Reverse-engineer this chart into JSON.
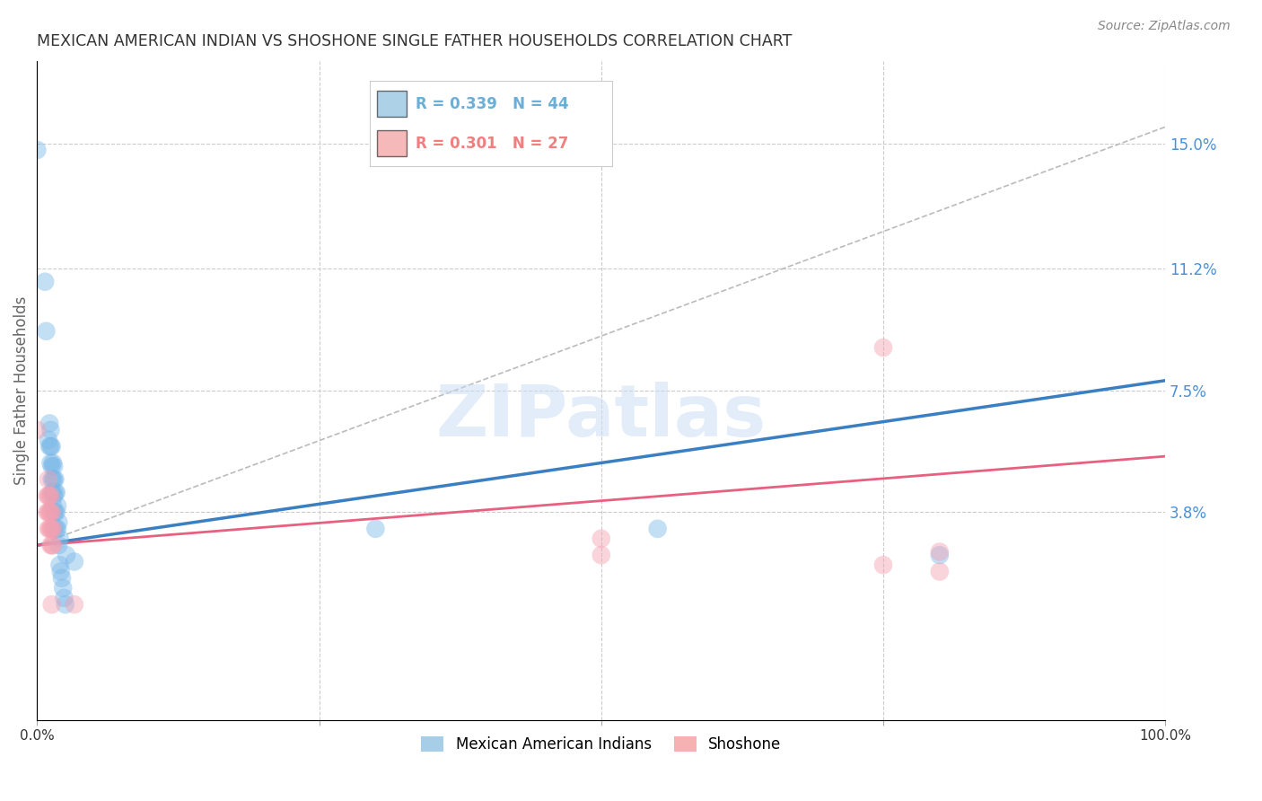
{
  "title": "MEXICAN AMERICAN INDIAN VS SHOSHONE SINGLE FATHER HOUSEHOLDS CORRELATION CHART",
  "source": "Source: ZipAtlas.com",
  "ylabel": "Single Father Households",
  "ytick_labels": [
    "15.0%",
    "11.2%",
    "7.5%",
    "3.8%"
  ],
  "ytick_values": [
    0.15,
    0.112,
    0.075,
    0.038
  ],
  "xlim": [
    0.0,
    1.0
  ],
  "ylim": [
    -0.025,
    0.175
  ],
  "blue_scatter": [
    [
      0.0,
      0.148
    ],
    [
      0.007,
      0.108
    ],
    [
      0.008,
      0.093
    ],
    [
      0.01,
      0.06
    ],
    [
      0.011,
      0.065
    ],
    [
      0.011,
      0.058
    ],
    [
      0.012,
      0.063
    ],
    [
      0.012,
      0.058
    ],
    [
      0.012,
      0.053
    ],
    [
      0.013,
      0.058
    ],
    [
      0.013,
      0.052
    ],
    [
      0.013,
      0.048
    ],
    [
      0.013,
      0.044
    ],
    [
      0.014,
      0.053
    ],
    [
      0.014,
      0.048
    ],
    [
      0.014,
      0.044
    ],
    [
      0.014,
      0.04
    ],
    [
      0.015,
      0.052
    ],
    [
      0.015,
      0.048
    ],
    [
      0.015,
      0.043
    ],
    [
      0.015,
      0.038
    ],
    [
      0.015,
      0.033
    ],
    [
      0.016,
      0.048
    ],
    [
      0.016,
      0.044
    ],
    [
      0.016,
      0.038
    ],
    [
      0.017,
      0.044
    ],
    [
      0.017,
      0.038
    ],
    [
      0.017,
      0.033
    ],
    [
      0.018,
      0.04
    ],
    [
      0.018,
      0.033
    ],
    [
      0.019,
      0.035
    ],
    [
      0.019,
      0.028
    ],
    [
      0.02,
      0.03
    ],
    [
      0.02,
      0.022
    ],
    [
      0.021,
      0.02
    ],
    [
      0.022,
      0.018
    ],
    [
      0.023,
      0.015
    ],
    [
      0.024,
      0.012
    ],
    [
      0.025,
      0.01
    ],
    [
      0.026,
      0.025
    ],
    [
      0.033,
      0.023
    ],
    [
      0.55,
      0.033
    ],
    [
      0.3,
      0.033
    ],
    [
      0.8,
      0.025
    ]
  ],
  "pink_scatter": [
    [
      0.0,
      0.063
    ],
    [
      0.009,
      0.043
    ],
    [
      0.009,
      0.038
    ],
    [
      0.01,
      0.048
    ],
    [
      0.01,
      0.043
    ],
    [
      0.01,
      0.038
    ],
    [
      0.01,
      0.033
    ],
    [
      0.011,
      0.043
    ],
    [
      0.011,
      0.038
    ],
    [
      0.011,
      0.033
    ],
    [
      0.012,
      0.043
    ],
    [
      0.012,
      0.038
    ],
    [
      0.012,
      0.033
    ],
    [
      0.012,
      0.028
    ],
    [
      0.013,
      0.038
    ],
    [
      0.013,
      0.033
    ],
    [
      0.013,
      0.028
    ],
    [
      0.013,
      0.01
    ],
    [
      0.014,
      0.033
    ],
    [
      0.014,
      0.028
    ],
    [
      0.5,
      0.03
    ],
    [
      0.5,
      0.025
    ],
    [
      0.75,
      0.088
    ],
    [
      0.75,
      0.022
    ],
    [
      0.8,
      0.02
    ],
    [
      0.8,
      0.026
    ],
    [
      0.033,
      0.01
    ]
  ],
  "blue_line_x": [
    0.0,
    1.0
  ],
  "blue_line_y": [
    0.028,
    0.078
  ],
  "pink_line_x": [
    0.0,
    1.0
  ],
  "pink_line_y": [
    0.028,
    0.055
  ],
  "dashed_line_x": [
    0.0,
    1.0
  ],
  "dashed_line_y": [
    0.028,
    0.155
  ],
  "watermark_text": "ZIPatlas",
  "scatter_size": 220,
  "scatter_alpha": 0.45,
  "blue_color": "#7ab8e8",
  "pink_color": "#f4a0b0",
  "line_blue": "#3a7fc1",
  "line_pink": "#e86080",
  "dashed_color": "#bbbbbb",
  "grid_color": "#cccccc",
  "title_color": "#333333",
  "axis_label_color": "#666666",
  "right_tick_color": "#4a90d9",
  "legend_blue_color": "#6baed6",
  "legend_pink_color": "#f08080"
}
